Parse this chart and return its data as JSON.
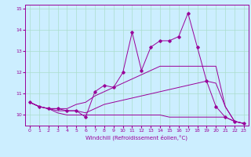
{
  "title": "",
  "xlabel": "Windchill (Refroidissement éolien,°C)",
  "bg_color": "#cceeff",
  "line_color": "#990099",
  "x_data": [
    0,
    1,
    2,
    3,
    4,
    5,
    6,
    7,
    8,
    9,
    10,
    11,
    12,
    13,
    14,
    15,
    16,
    17,
    18,
    19,
    20,
    21,
    22,
    23
  ],
  "y_main": [
    10.6,
    10.4,
    10.3,
    10.3,
    10.2,
    10.2,
    9.9,
    11.1,
    11.4,
    11.3,
    12.0,
    13.9,
    12.1,
    13.2,
    13.5,
    13.5,
    13.7,
    14.8,
    13.2,
    11.6,
    10.4,
    9.9,
    9.7,
    9.6
  ],
  "y_upper": [
    10.6,
    10.4,
    10.3,
    10.3,
    10.3,
    10.5,
    10.6,
    10.9,
    11.1,
    11.3,
    11.5,
    11.7,
    11.9,
    12.1,
    12.3,
    12.3,
    12.3,
    12.3,
    12.3,
    12.3,
    12.3,
    10.4,
    9.7,
    9.6
  ],
  "y_mid": [
    10.6,
    10.4,
    10.3,
    10.2,
    10.2,
    10.2,
    10.1,
    10.3,
    10.5,
    10.6,
    10.7,
    10.8,
    10.9,
    11.0,
    11.1,
    11.2,
    11.3,
    11.4,
    11.5,
    11.6,
    11.5,
    10.4,
    9.7,
    9.6
  ],
  "y_lower": [
    10.6,
    10.4,
    10.3,
    10.1,
    10.0,
    10.0,
    10.0,
    10.0,
    10.0,
    10.0,
    10.0,
    10.0,
    10.0,
    10.0,
    10.0,
    9.9,
    9.9,
    9.9,
    9.9,
    9.9,
    9.9,
    9.9,
    9.7,
    9.6
  ],
  "ylim": [
    9.5,
    15.2
  ],
  "xlim": [
    -0.5,
    23.5
  ],
  "yticks": [
    10,
    11,
    12,
    13,
    14,
    15
  ],
  "xticks": [
    0,
    1,
    2,
    3,
    4,
    5,
    6,
    7,
    8,
    9,
    10,
    11,
    12,
    13,
    14,
    15,
    16,
    17,
    18,
    19,
    20,
    21,
    22,
    23
  ],
  "grid_color": "#aaddcc",
  "marker": "D",
  "markersize": 1.8,
  "linewidth": 0.7,
  "tick_labelsize": 4.5,
  "xlabel_fontsize": 5.0
}
